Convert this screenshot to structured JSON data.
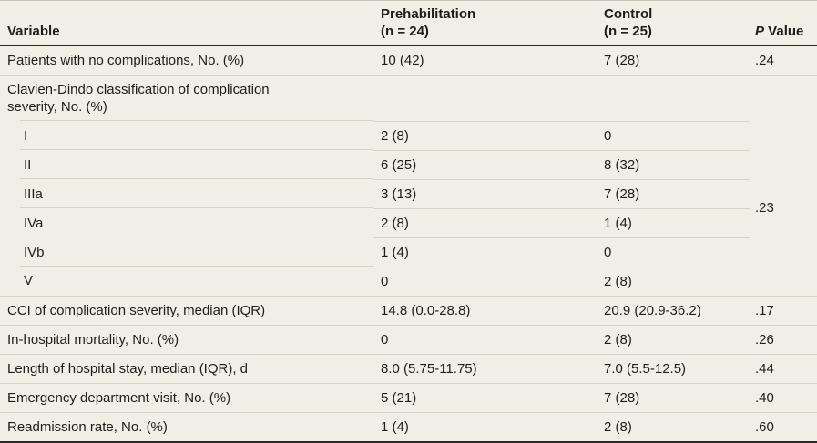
{
  "table_header": {
    "variable": "Variable",
    "prehab": {
      "name": "Prehabilitation",
      "n": "(n = 24)"
    },
    "control": {
      "name": "Control",
      "n": "(n = 25)"
    },
    "p_label_italic": "P",
    "p_label_rest": " Value"
  },
  "rows": {
    "no_complications": {
      "label": "Patients with no complications, No. (%)",
      "prehab": "10 (42)",
      "control": "7 (28)",
      "p": ".24"
    },
    "clavien_header": {
      "label": "Clavien-Dindo classification of complication severity, No. (%)"
    },
    "clavien_grades": [
      {
        "label": "I",
        "prehab": "2 (8)",
        "control": "0"
      },
      {
        "label": "II",
        "prehab": "6 (25)",
        "control": "8 (32)"
      },
      {
        "label": "IIIa",
        "prehab": "3 (13)",
        "control": "7 (28)"
      },
      {
        "label": "IVa",
        "prehab": "2 (8)",
        "control": "1 (4)"
      },
      {
        "label": "IVb",
        "prehab": "1 (4)",
        "control": "0"
      },
      {
        "label": "V",
        "prehab": "0",
        "control": "2 (8)"
      }
    ],
    "clavien_group_p": ".23",
    "cci": {
      "label": "CCI of complication severity, median (IQR)",
      "prehab": "14.8 (0.0-28.8)",
      "control": "20.9 (20.9-36.2)",
      "p": ".17"
    },
    "mortality": {
      "label": "In-hospital mortality, No. (%)",
      "prehab": "0",
      "control": "2 (8)",
      "p": ".26"
    },
    "los": {
      "label": "Length of hospital stay, median (IQR), d",
      "prehab": "8.0 (5.75-11.75)",
      "control": "7.0 (5.5-12.5)",
      "p": ".44"
    },
    "ed_visit": {
      "label": "Emergency department visit, No. (%)",
      "prehab": "5 (21)",
      "control": "7 (28)",
      "p": ".40"
    },
    "readmission": {
      "label": "Readmission rate, No. (%)",
      "prehab": "1 (4)",
      "control": "2 (8)",
      "p": ".60"
    }
  },
  "colors": {
    "background": "#f1eee5",
    "row_line": "#d5d2c8",
    "strong_rule": "#2b2a27",
    "text": "#1f1d1a"
  }
}
